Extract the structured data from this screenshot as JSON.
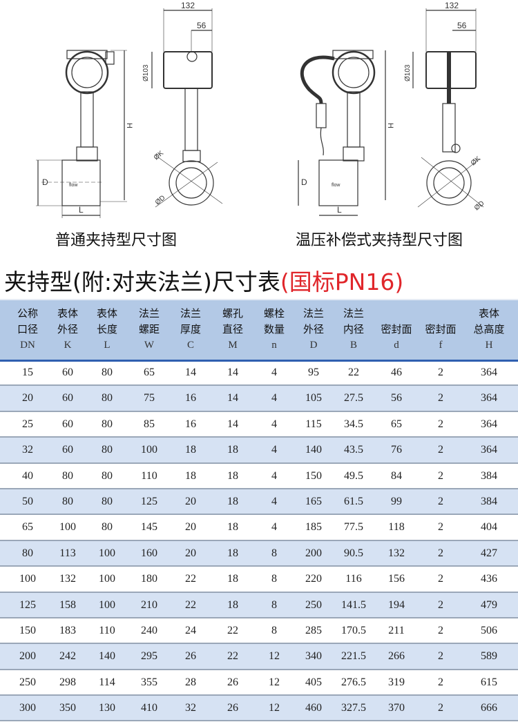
{
  "drawings": {
    "left": {
      "caption": "普通夹持型尺寸图",
      "dim_width": "132",
      "dim_offset": "56",
      "dim_housing": "Ø103",
      "dim_height": "H",
      "dim_body_dia": "D",
      "dim_length": "L",
      "dim_k": "ØK",
      "dim_d": "ØD",
      "flow": "flow"
    },
    "right": {
      "caption": "温压补偿式夹持型尺寸图",
      "dim_width": "132",
      "dim_offset": "56",
      "dim_housing": "Ø103",
      "dim_height": "H",
      "dim_body_dia": "D",
      "dim_length": "L",
      "dim_k": "ØK",
      "dim_d": "ØD",
      "flow": "flow"
    }
  },
  "title": {
    "main": "夹持型(附:对夹法兰)尺寸表",
    "standard": "(国标PN16)",
    "standard_color": "#e0262b"
  },
  "table": {
    "header_color": "#b3c9e6",
    "alt_row_color": "#d6e2f3",
    "columns": [
      {
        "line1": "公称",
        "line2": "口径",
        "symbol": "DN"
      },
      {
        "line1": "表体",
        "line2": "外径",
        "symbol": "K"
      },
      {
        "line1": "表体",
        "line2": "长度",
        "symbol": "L"
      },
      {
        "line1": "法兰",
        "line2": "螺距",
        "symbol": "W"
      },
      {
        "line1": "法兰",
        "line2": "厚度",
        "symbol": "C"
      },
      {
        "line1": "螺孔",
        "line2": "直径",
        "symbol": "M"
      },
      {
        "line1": "螺栓",
        "line2": "数量",
        "symbol": "n"
      },
      {
        "line1": "法兰",
        "line2": "外径",
        "symbol": "D"
      },
      {
        "line1": "法兰",
        "line2": "内径",
        "symbol": "B"
      },
      {
        "line1": "",
        "line2": "密封面",
        "symbol": "d"
      },
      {
        "line1": "",
        "line2": "密封面",
        "symbol": "f"
      },
      {
        "line1": "表体",
        "line2": "总高度",
        "symbol": "H"
      }
    ],
    "rows": [
      [
        "15",
        "60",
        "80",
        "65",
        "14",
        "14",
        "4",
        "95",
        "22",
        "46",
        "2",
        "364"
      ],
      [
        "20",
        "60",
        "80",
        "75",
        "16",
        "14",
        "4",
        "105",
        "27.5",
        "56",
        "2",
        "364"
      ],
      [
        "25",
        "60",
        "80",
        "85",
        "16",
        "14",
        "4",
        "115",
        "34.5",
        "65",
        "2",
        "364"
      ],
      [
        "32",
        "60",
        "80",
        "100",
        "18",
        "18",
        "4",
        "140",
        "43.5",
        "76",
        "2",
        "364"
      ],
      [
        "40",
        "80",
        "80",
        "110",
        "18",
        "18",
        "4",
        "150",
        "49.5",
        "84",
        "2",
        "384"
      ],
      [
        "50",
        "80",
        "80",
        "125",
        "20",
        "18",
        "4",
        "165",
        "61.5",
        "99",
        "2",
        "384"
      ],
      [
        "65",
        "100",
        "80",
        "145",
        "20",
        "18",
        "4",
        "185",
        "77.5",
        "118",
        "2",
        "404"
      ],
      [
        "80",
        "113",
        "100",
        "160",
        "20",
        "18",
        "8",
        "200",
        "90.5",
        "132",
        "2",
        "427"
      ],
      [
        "100",
        "132",
        "100",
        "180",
        "22",
        "18",
        "8",
        "220",
        "116",
        "156",
        "2",
        "436"
      ],
      [
        "125",
        "158",
        "100",
        "210",
        "22",
        "18",
        "8",
        "250",
        "141.5",
        "194",
        "2",
        "479"
      ],
      [
        "150",
        "183",
        "110",
        "240",
        "24",
        "22",
        "8",
        "285",
        "170.5",
        "211",
        "2",
        "506"
      ],
      [
        "200",
        "242",
        "140",
        "295",
        "26",
        "22",
        "12",
        "340",
        "221.5",
        "266",
        "2",
        "589"
      ],
      [
        "250",
        "298",
        "114",
        "355",
        "28",
        "26",
        "12",
        "405",
        "276.5",
        "319",
        "2",
        "615"
      ],
      [
        "300",
        "350",
        "130",
        "410",
        "32",
        "26",
        "12",
        "460",
        "327.5",
        "370",
        "2",
        "666"
      ]
    ]
  }
}
